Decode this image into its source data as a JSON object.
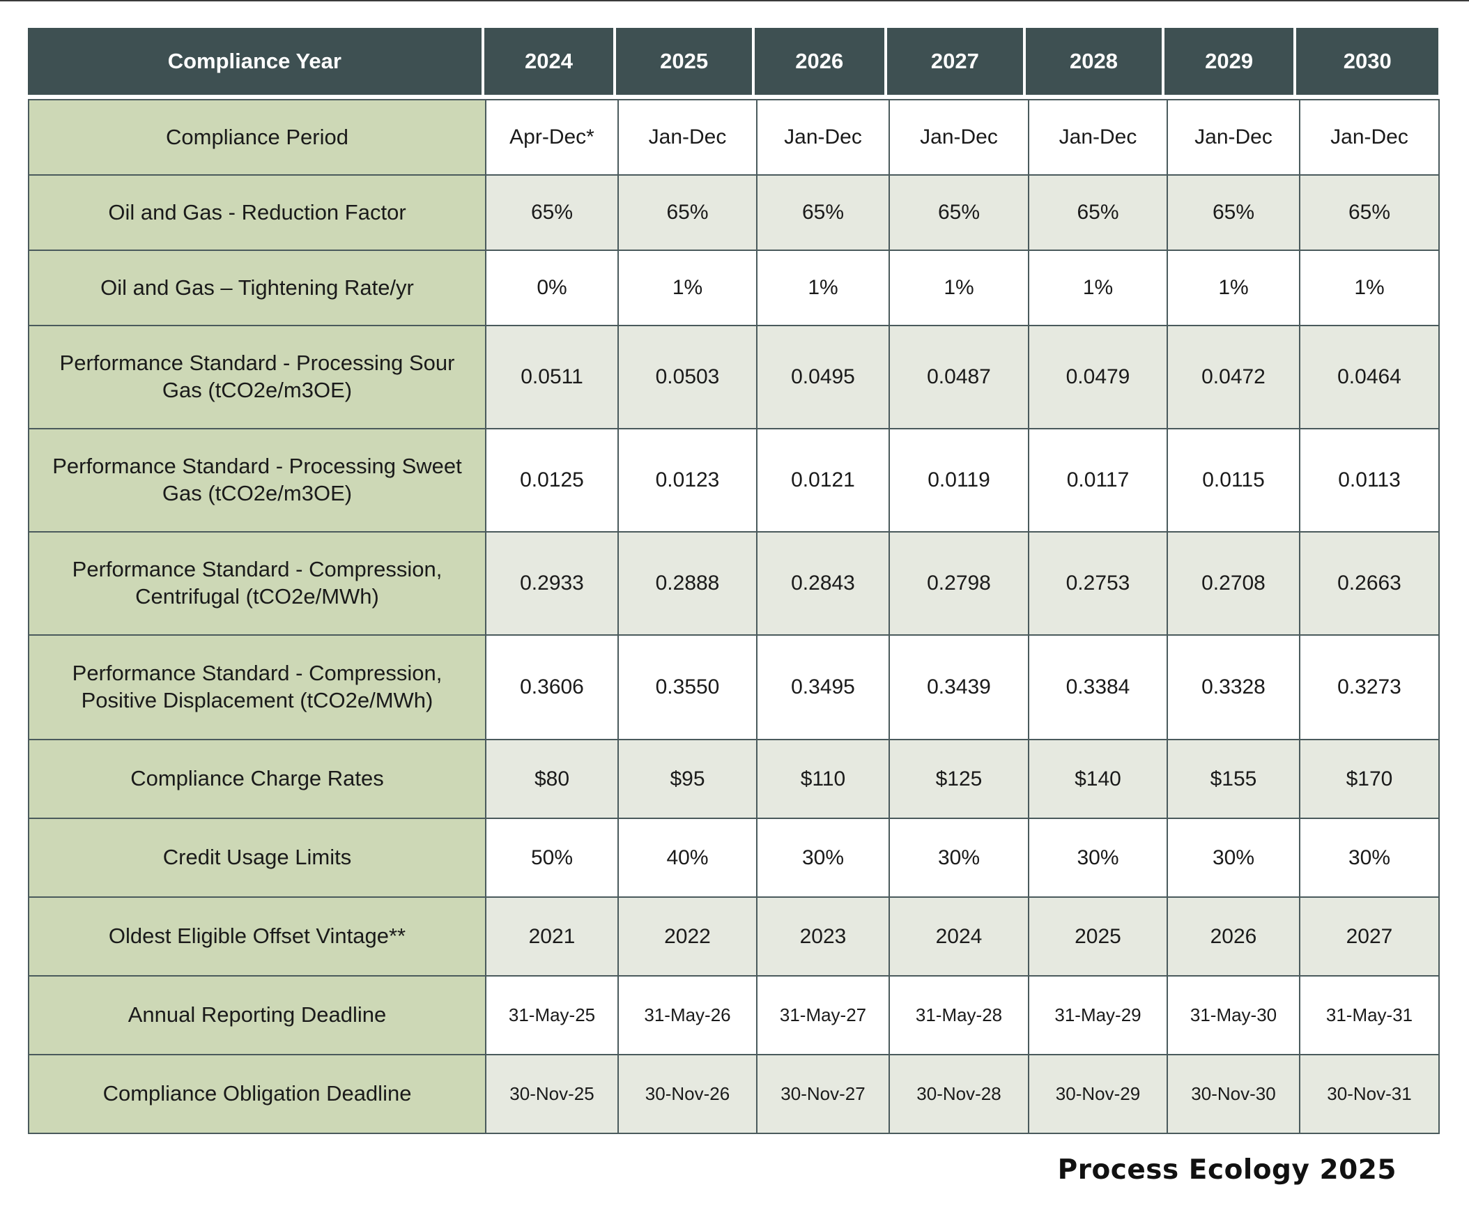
{
  "header": {
    "label": "Compliance Year",
    "years": [
      "2024",
      "2025",
      "2026",
      "2027",
      "2028",
      "2029",
      "2030"
    ]
  },
  "rows": [
    {
      "label": "Compliance Period",
      "values": [
        "Apr-Dec*",
        "Jan-Dec",
        "Jan-Dec",
        "Jan-Dec",
        "Jan-Dec",
        "Jan-Dec",
        "Jan-Dec"
      ]
    },
    {
      "label": "Oil and Gas - Reduction Factor",
      "values": [
        "65%",
        "65%",
        "65%",
        "65%",
        "65%",
        "65%",
        "65%"
      ]
    },
    {
      "label": "Oil and Gas – Tightening Rate/yr",
      "values": [
        "0%",
        "1%",
        "1%",
        "1%",
        "1%",
        "1%",
        "1%"
      ]
    },
    {
      "label": "Performance Standard - Processing Sour Gas (tCO2e/m3OE)",
      "values": [
        "0.0511",
        "0.0503",
        "0.0495",
        "0.0487",
        "0.0479",
        "0.0472",
        "0.0464"
      ]
    },
    {
      "label": "Performance Standard - Processing Sweet Gas (tCO2e/m3OE)",
      "values": [
        "0.0125",
        "0.0123",
        "0.0121",
        "0.0119",
        "0.0117",
        "0.0115",
        "0.0113"
      ]
    },
    {
      "label": "Performance Standard - Compression, Centrifugal (tCO2e/MWh)",
      "values": [
        "0.2933",
        "0.2888",
        "0.2843",
        "0.2798",
        "0.2753",
        "0.2708",
        "0.2663"
      ]
    },
    {
      "label": "Performance Standard - Compression, Positive Displacement (tCO2e/MWh)",
      "values": [
        "0.3606",
        "0.3550",
        "0.3495",
        "0.3439",
        "0.3384",
        "0.3328",
        "0.3273"
      ]
    },
    {
      "label": "Compliance Charge Rates",
      "values": [
        "$80",
        "$95",
        "$110",
        "$125",
        "$140",
        "$155",
        "$170"
      ]
    },
    {
      "label": "Credit Usage Limits",
      "values": [
        "50%",
        "40%",
        "30%",
        "30%",
        "30%",
        "30%",
        "30%"
      ]
    },
    {
      "label": "Oldest Eligible Offset Vintage**",
      "values": [
        "2021",
        "2022",
        "2023",
        "2024",
        "2025",
        "2026",
        "2027"
      ]
    },
    {
      "label": "Annual Reporting Deadline",
      "values": [
        "31-May-25",
        "31-May-26",
        "31-May-27",
        "31-May-28",
        "31-May-29",
        "31-May-30",
        "31-May-31"
      ]
    },
    {
      "label": "Compliance Obligation Deadline",
      "values": [
        "30-Nov-25",
        "30-Nov-26",
        "30-Nov-27",
        "30-Nov-28",
        "30-Nov-29",
        "30-Nov-30",
        "30-Nov-31"
      ]
    }
  ],
  "footer": "Process Ecology 2025",
  "colors": {
    "header_bg": "#3e5052",
    "label_bg": "#cdd8b6",
    "alt_row_bg": "#e6e9e0",
    "border": "#4a5a5c"
  }
}
